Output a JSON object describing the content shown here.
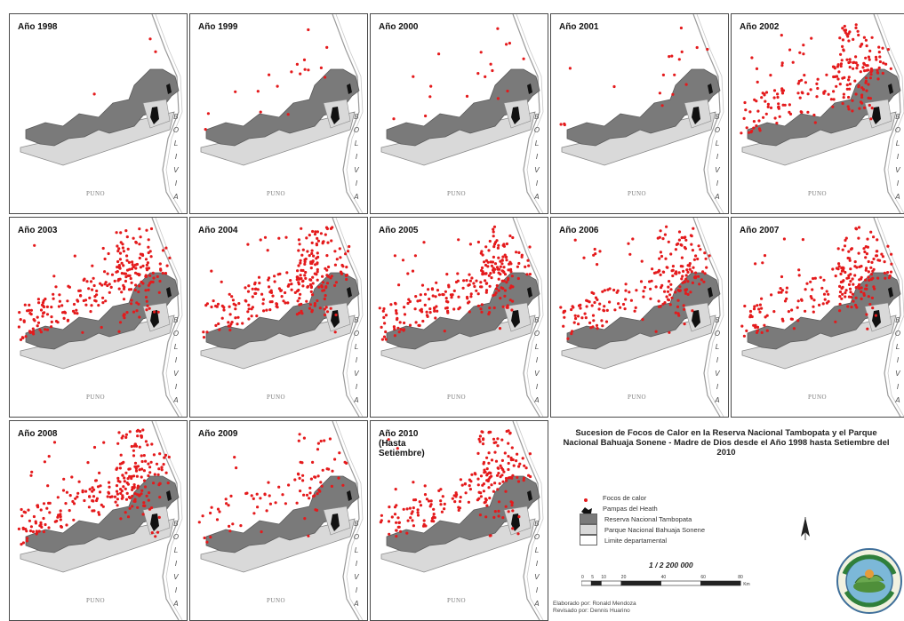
{
  "panels": [
    {
      "label": "Año 1998",
      "density": 0
    },
    {
      "label": "Año 1999",
      "density": 1
    },
    {
      "label": "Año 2000",
      "density": 1
    },
    {
      "label": "Año 2001",
      "density": 1
    },
    {
      "label": "Año 2002",
      "density": 3
    },
    {
      "label": "Año 2003",
      "density": 4
    },
    {
      "label": "Año 2004",
      "density": 4
    },
    {
      "label": "Año 2005",
      "density": 4
    },
    {
      "label": "Año 2006",
      "density": 3
    },
    {
      "label": "Año 2007",
      "density": 3
    },
    {
      "label": "Año 2008",
      "density": 4
    },
    {
      "label": "Año 2009",
      "density": 2
    },
    {
      "label": "Año 2010\n(Hasta\nSetiembre)",
      "density": 3
    }
  ],
  "map_labels": {
    "country": "BOLIVIA",
    "region": "PUNO"
  },
  "title": "Sucesion de Focos de Calor en la Reserva Nacional Tambopata y el Parque Nacional Bahuaja Sonene - Madre de Dios desde el Año 1998 hasta Setiembre del 2010",
  "legend": [
    {
      "label": "Focos de calor",
      "symbol": "dot",
      "color": "#e41a1c"
    },
    {
      "label": "Pampas del Heath",
      "symbol": "black-shape",
      "color": "#111111"
    },
    {
      "label": "Reserva Nacional Tambopata",
      "symbol": "dark-fill",
      "color": "#7a7a7a"
    },
    {
      "label": "Parque Nacional Bahuaja Sonene",
      "symbol": "light-fill",
      "color": "#d9d9d9"
    },
    {
      "label": "Limite departamental",
      "symbol": "outline",
      "color": "#ffffff"
    }
  ],
  "scale": {
    "ratio": "1 / 2 200 000",
    "ticks": [
      "0",
      "5",
      "10",
      "20",
      "40",
      "60",
      "80"
    ],
    "unit": "Km"
  },
  "credits": [
    "Elaborado por: Ronald Mendoza",
    "Revisado por: Dennis Huarino"
  ],
  "colors": {
    "hotspot": "#e41a1c",
    "reserve": "#7a7a7a",
    "park": "#d9d9d9",
    "heath": "#111111"
  }
}
